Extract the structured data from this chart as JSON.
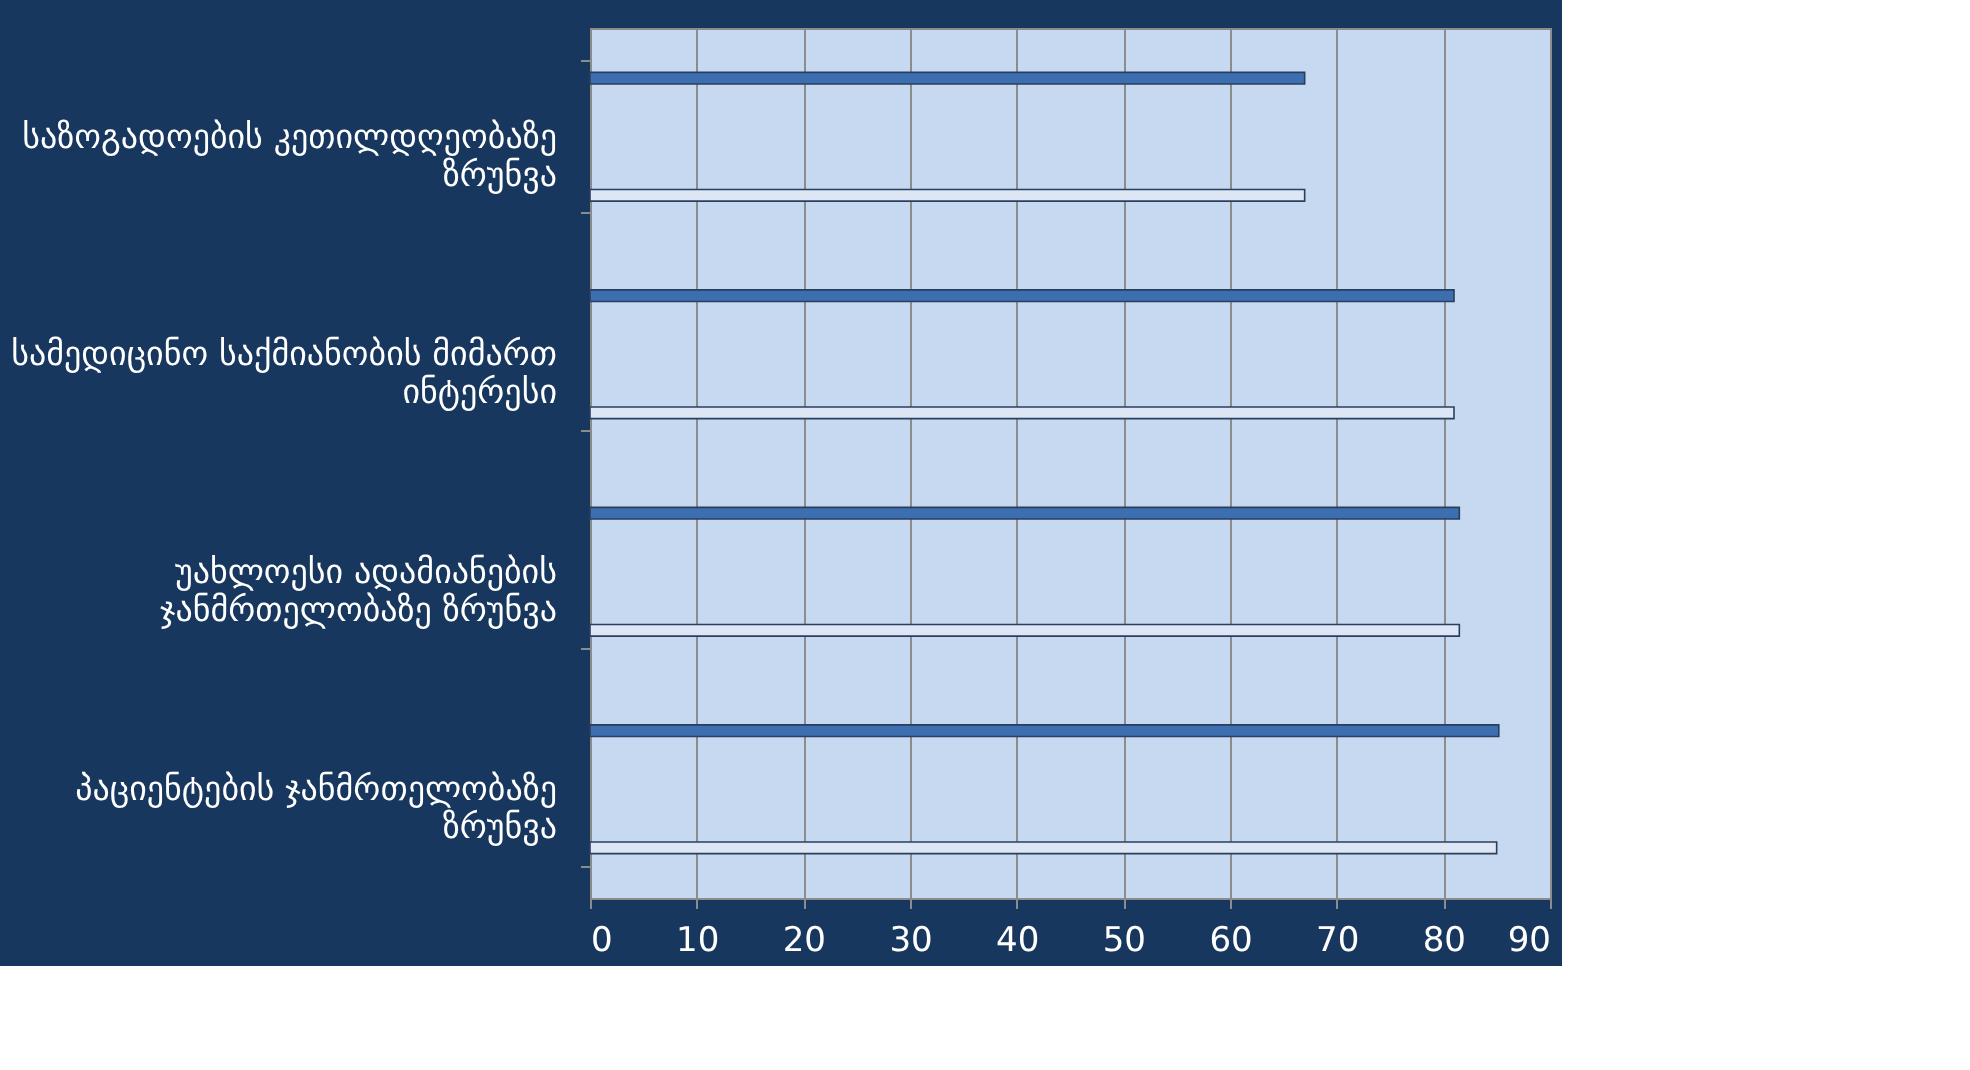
{
  "chart_data": {
    "type": "bar",
    "orientation": "horizontal",
    "categories": [
      "საზოგადოების კეთილდღეობაზე ზრუნვა",
      "სამედიცინო საქმიანობის მიმართ ინტერესი",
      "უახლოესი ადამიანების ჯანმრთელობაზე ზრუნვა",
      "პაციენტების ჯანმრთელობაზე ზრუნვა"
    ],
    "series": [
      {
        "color": "#3d6fb0",
        "values": [
          67,
          81,
          81.5,
          85.2
        ]
      },
      {
        "color": "#dce6f4",
        "values": [
          67,
          81,
          81.5,
          85
        ]
      }
    ],
    "xlim": [
      0,
      90
    ],
    "xticks": [
      0,
      10,
      20,
      30,
      40,
      50,
      60,
      70,
      80,
      90
    ],
    "grid": "x",
    "legend": false
  }
}
